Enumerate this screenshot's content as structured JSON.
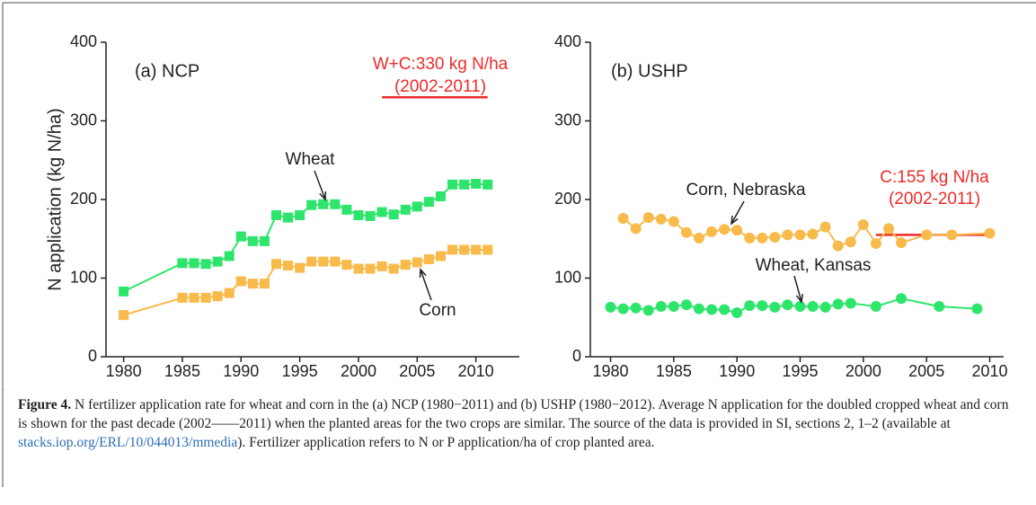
{
  "chart_data": [
    {
      "type": "line",
      "title": "(a) NCP",
      "y_label": "N application (kg N/ha)",
      "marker": "square",
      "xlim": [
        1978.5,
        2013.7
      ],
      "xticks": [
        1980,
        1985,
        1990,
        1995,
        2000,
        2005,
        2010
      ],
      "ylim": [
        0,
        400
      ],
      "yticks": [
        0,
        100,
        200,
        300,
        400
      ],
      "series": [
        {
          "name": "Wheat",
          "color": "#2ee56c",
          "x": [
            1980,
            1985,
            1986,
            1987,
            1988,
            1989,
            1990,
            1991,
            1992,
            1993,
            1994,
            1995,
            1996,
            1997,
            1998,
            1999,
            2000,
            2001,
            2002,
            2003,
            2004,
            2005,
            2006,
            2007,
            2008,
            2009,
            2010,
            2011
          ],
          "values": [
            83,
            119,
            119,
            118,
            121,
            128,
            153,
            147,
            147,
            180,
            177,
            180,
            193,
            194,
            194,
            187,
            180,
            179,
            184,
            181,
            187,
            191,
            197,
            204,
            219,
            219,
            220,
            219
          ]
        },
        {
          "name": "Corn",
          "color": "#f8bb4b",
          "x": [
            1980,
            1985,
            1986,
            1987,
            1988,
            1989,
            1990,
            1991,
            1992,
            1993,
            1994,
            1995,
            1996,
            1997,
            1998,
            1999,
            2000,
            2001,
            2002,
            2003,
            2004,
            2005,
            2006,
            2007,
            2008,
            2009,
            2010,
            2011
          ],
          "values": [
            53,
            75,
            75,
            75,
            77,
            81,
            96,
            93,
            93,
            118,
            116,
            113,
            121,
            121,
            121,
            117,
            112,
            112,
            115,
            112,
            117,
            120,
            124,
            128,
            136,
            136,
            136,
            136
          ]
        }
      ],
      "reference_line": {
        "label": [
          "W+C:330 kg N/ha",
          "(2002-2011)"
        ],
        "x": [
          2002,
          2011
        ],
        "value": 330,
        "color": "#ee2a2a"
      }
    },
    {
      "type": "line",
      "title": "(b) USHP",
      "marker": "circle",
      "xlim": [
        1978.4,
        2011.1
      ],
      "xticks": [
        1980,
        1985,
        1990,
        1995,
        2000,
        2005,
        2010
      ],
      "ylim": [
        0,
        400
      ],
      "yticks": [
        0,
        100,
        200,
        300,
        400
      ],
      "series": [
        {
          "name": "Corn, Nebraska",
          "color": "#f8bb4b",
          "x": [
            1981,
            1982,
            1983,
            1984,
            1985,
            1986,
            1987,
            1988,
            1989,
            1990,
            1991,
            1992,
            1993,
            1994,
            1995,
            1996,
            1997,
            1998,
            1999,
            2000,
            2001,
            2002,
            2003,
            2005,
            2007,
            2010
          ],
          "values": [
            176,
            163,
            177,
            175,
            172,
            158,
            151,
            159,
            162,
            161,
            151,
            151,
            152,
            155,
            155,
            156,
            165,
            141,
            146,
            168,
            144,
            163,
            145,
            155,
            155,
            157
          ]
        },
        {
          "name": "Wheat, Kansas",
          "color": "#2ee56c",
          "x": [
            1980,
            1981,
            1982,
            1983,
            1984,
            1985,
            1986,
            1987,
            1988,
            1989,
            1990,
            1991,
            1992,
            1993,
            1994,
            1995,
            1996,
            1997,
            1998,
            1999,
            2001,
            2003,
            2006,
            2009
          ],
          "values": [
            63,
            61,
            62,
            59,
            64,
            64,
            66,
            61,
            60,
            60,
            56,
            65,
            65,
            63,
            66,
            64,
            64,
            63,
            67,
            68,
            64,
            74,
            64,
            61
          ]
        }
      ],
      "reference_line": {
        "label": [
          "C:155 kg N/ha",
          "(2002-2011)"
        ],
        "x": [
          2001,
          2010
        ],
        "value": 155,
        "color": "#ee2a2a"
      }
    }
  ],
  "caption": {
    "figure_label": "Figure 4.",
    "text": "N fertilizer application rate for wheat and corn in the (a) NCP (1980−2011) and (b) USHP (1980−2012). Average N application for the doubled cropped wheat and corn is shown for the past decade (2002——2011) when the planted areas for the two crops are similar. The source of the data is provided in SI, sections 2, 1–2 (available at",
    "link": "stacks.iop.org/ERL/10/044013/mmedia",
    "text_end": "). Fertilizer application refers to N or P application/ha of crop planted area."
  }
}
